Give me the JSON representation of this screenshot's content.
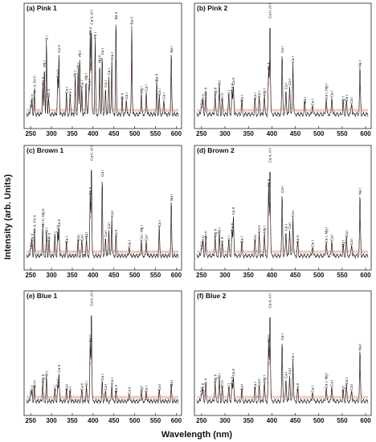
{
  "chart_data": {
    "type": "line",
    "xlabel": "Wavelength (nm)",
    "ylabel": "Intensity (arb. Units)",
    "xlim": [
      240,
      605
    ],
    "xticks": [
      250,
      300,
      350,
      400,
      450,
      500,
      550,
      600
    ],
    "series_colors": {
      "spectrum": "#111111",
      "overlay": "#e08a80"
    },
    "panels": [
      {
        "id": "a",
        "title": "(a) Pink 1",
        "peaks": [
          {
            "x": 250,
            "h": 0.08,
            "label": "Si I"
          },
          {
            "x": 253,
            "h": 0.14,
            "label": "Fe II"
          },
          {
            "x": 259,
            "h": 0.22,
            "label": "Mn II, Fe II"
          },
          {
            "x": 279,
            "h": 0.3,
            "label": "Mg II"
          },
          {
            "x": 283,
            "h": 0.48,
            "label": "Pb I"
          },
          {
            "x": 288,
            "h": 0.74,
            "label": "Si I"
          },
          {
            "x": 293,
            "h": 0.18,
            "label": "Mn II"
          },
          {
            "x": 315,
            "h": 0.38,
            "label": "Ca II"
          },
          {
            "x": 318,
            "h": 0.62,
            "label": "Ca II"
          },
          {
            "x": 336,
            "h": 0.22,
            "label": "Ca I"
          },
          {
            "x": 345,
            "h": 0.2,
            "label": "Fe I"
          },
          {
            "x": 357,
            "h": 0.38,
            "label": "Pb I"
          },
          {
            "x": 364,
            "h": 0.46,
            "label": "Pb I"
          },
          {
            "x": 368,
            "h": 0.58,
            "label": "Pb I"
          },
          {
            "x": 373,
            "h": 0.28,
            "label": "Ca I"
          },
          {
            "x": 383,
            "h": 0.35,
            "label": "Mg I"
          },
          {
            "x": 390,
            "h": 0.3,
            "label": "Ca I"
          },
          {
            "x": 393,
            "h": 0.8,
            "label": "Ca II"
          },
          {
            "x": 396,
            "h": 0.9,
            "label": "Ca II, Al I"
          },
          {
            "x": 405,
            "h": 0.76,
            "label": "Pb I"
          },
          {
            "x": 416,
            "h": 0.52,
            "label": "Mg II"
          },
          {
            "x": 422,
            "h": 0.6,
            "label": "Ca I"
          },
          {
            "x": 430,
            "h": 0.28,
            "label": "Ca I"
          },
          {
            "x": 438,
            "h": 0.4,
            "label": "Ca I"
          },
          {
            "x": 445,
            "h": 0.56,
            "label": "Ca I"
          },
          {
            "x": 455,
            "h": 0.95,
            "label": "Ba II"
          },
          {
            "x": 470,
            "h": 0.16,
            "label": "Si II"
          },
          {
            "x": 480,
            "h": 0.16,
            "label": "Ca I"
          },
          {
            "x": 493,
            "h": 0.9,
            "label": "Ba II"
          },
          {
            "x": 516,
            "h": 0.22,
            "label": "Mg I"
          },
          {
            "x": 528,
            "h": 0.24,
            "label": "Ca I"
          },
          {
            "x": 553,
            "h": 0.34,
            "label": "Ba II"
          },
          {
            "x": 559,
            "h": 0.2,
            "label": "Ca I"
          },
          {
            "x": 570,
            "h": 0.16,
            "label": "Ca I"
          },
          {
            "x": 588,
            "h": 0.62,
            "label": "Na I"
          }
        ]
      },
      {
        "id": "b",
        "title": "(b) Pink 2",
        "peaks": [
          {
            "x": 250,
            "h": 0.1,
            "label": "Si I"
          },
          {
            "x": 253,
            "h": 0.14,
            "label": "Fe II"
          },
          {
            "x": 259,
            "h": 0.2,
            "label": "Mn II"
          },
          {
            "x": 279,
            "h": 0.2,
            "label": "Mg II"
          },
          {
            "x": 288,
            "h": 0.3,
            "label": "Si I"
          },
          {
            "x": 294,
            "h": 0.14,
            "label": "Mn II"
          },
          {
            "x": 308,
            "h": 0.2,
            "label": "Al I"
          },
          {
            "x": 315,
            "h": 0.24,
            "label": "Ca II"
          },
          {
            "x": 318,
            "h": 0.3,
            "label": "Ca II"
          },
          {
            "x": 336,
            "h": 0.14,
            "label": "Ca I"
          },
          {
            "x": 364,
            "h": 0.16,
            "label": "Ca I"
          },
          {
            "x": 373,
            "h": 0.18,
            "label": "Ca I"
          },
          {
            "x": 384,
            "h": 0.2,
            "label": "Mg I"
          },
          {
            "x": 393,
            "h": 0.45,
            "label": "Ca II"
          },
          {
            "x": 396,
            "h": 0.96,
            "label": "Ca II, Al I"
          },
          {
            "x": 422,
            "h": 0.62,
            "label": "Ca I"
          },
          {
            "x": 430,
            "h": 0.26,
            "label": "Ca I"
          },
          {
            "x": 438,
            "h": 0.3,
            "label": "Ca I"
          },
          {
            "x": 445,
            "h": 0.52,
            "label": "Ca I"
          },
          {
            "x": 470,
            "h": 0.12,
            "label": "Ca I"
          },
          {
            "x": 487,
            "h": 0.1,
            "label": "Ca I"
          },
          {
            "x": 516,
            "h": 0.16,
            "label": "Ca I, Mg I"
          },
          {
            "x": 528,
            "h": 0.18,
            "label": "Ca I"
          },
          {
            "x": 552,
            "h": 0.12,
            "label": "Mg I"
          },
          {
            "x": 559,
            "h": 0.14,
            "label": "Ca I"
          },
          {
            "x": 570,
            "h": 0.12,
            "label": "Ca I"
          },
          {
            "x": 588,
            "h": 0.48,
            "label": "Na I"
          }
        ]
      },
      {
        "id": "c",
        "title": "(c) Brown 1",
        "peaks": [
          {
            "x": 250,
            "h": 0.1,
            "label": "Si I"
          },
          {
            "x": 253,
            "h": 0.16,
            "label": "Fe II"
          },
          {
            "x": 259,
            "h": 0.24,
            "label": "Mn II, Fe II"
          },
          {
            "x": 279,
            "h": 0.3,
            "label": "Mn II, Mg II"
          },
          {
            "x": 288,
            "h": 0.24,
            "label": "Si I"
          },
          {
            "x": 294,
            "h": 0.16,
            "label": "Mn II"
          },
          {
            "x": 308,
            "h": 0.2,
            "label": "Al I"
          },
          {
            "x": 315,
            "h": 0.24,
            "label": "Ca II"
          },
          {
            "x": 318,
            "h": 0.3,
            "label": "Ca II"
          },
          {
            "x": 336,
            "h": 0.14,
            "label": "Ca I"
          },
          {
            "x": 364,
            "h": 0.16,
            "label": "Ca I"
          },
          {
            "x": 373,
            "h": 0.16,
            "label": "Ca I"
          },
          {
            "x": 384,
            "h": 0.18,
            "label": "Mg I"
          },
          {
            "x": 393,
            "h": 0.62,
            "label": "Ca II"
          },
          {
            "x": 396,
            "h": 0.96,
            "label": "Ca II, Al I"
          },
          {
            "x": 422,
            "h": 0.8,
            "label": "Ca I"
          },
          {
            "x": 430,
            "h": 0.2,
            "label": "Ca I"
          },
          {
            "x": 438,
            "h": 0.28,
            "label": "Ca I"
          },
          {
            "x": 445,
            "h": 0.4,
            "label": "Ca I"
          },
          {
            "x": 455,
            "h": 0.2,
            "label": "Ba II"
          },
          {
            "x": 487,
            "h": 0.1,
            "label": "Ca I"
          },
          {
            "x": 516,
            "h": 0.16,
            "label": "Ca I, Mg I"
          },
          {
            "x": 528,
            "h": 0.16,
            "label": "Ca I"
          },
          {
            "x": 559,
            "h": 0.3,
            "label": "Ca I"
          },
          {
            "x": 588,
            "h": 0.56,
            "label": "Na I"
          }
        ]
      },
      {
        "id": "d",
        "title": "(d) Brown 2",
        "peaks": [
          {
            "x": 250,
            "h": 0.1,
            "label": "Si I"
          },
          {
            "x": 253,
            "h": 0.14,
            "label": "Fe II"
          },
          {
            "x": 259,
            "h": 0.18,
            "label": "Mn II"
          },
          {
            "x": 279,
            "h": 0.2,
            "label": "Mg II"
          },
          {
            "x": 288,
            "h": 0.24,
            "label": "Si I"
          },
          {
            "x": 294,
            "h": 0.12,
            "label": "Mn II"
          },
          {
            "x": 308,
            "h": 0.16,
            "label": "Al I"
          },
          {
            "x": 315,
            "h": 0.26,
            "label": "Ca II"
          },
          {
            "x": 318,
            "h": 0.42,
            "label": "Ca II"
          },
          {
            "x": 336,
            "h": 0.14,
            "label": "Ca I"
          },
          {
            "x": 364,
            "h": 0.16,
            "label": "Ca I"
          },
          {
            "x": 373,
            "h": 0.24,
            "label": "Ca II"
          },
          {
            "x": 384,
            "h": 0.24,
            "label": "Mg I"
          },
          {
            "x": 393,
            "h": 0.7,
            "label": "Ca II"
          },
          {
            "x": 396,
            "h": 0.94,
            "label": "Ca II, Al I"
          },
          {
            "x": 422,
            "h": 0.64,
            "label": "Ca I"
          },
          {
            "x": 430,
            "h": 0.26,
            "label": "Ca I"
          },
          {
            "x": 438,
            "h": 0.28,
            "label": "Ca I"
          },
          {
            "x": 445,
            "h": 0.4,
            "label": "Ca I"
          },
          {
            "x": 455,
            "h": 0.14,
            "label": "Ba II"
          },
          {
            "x": 487,
            "h": 0.1,
            "label": "Ca I"
          },
          {
            "x": 516,
            "h": 0.14,
            "label": "Ca I, Mg I"
          },
          {
            "x": 528,
            "h": 0.16,
            "label": "Ca I"
          },
          {
            "x": 552,
            "h": 0.1,
            "label": "Mg I"
          },
          {
            "x": 559,
            "h": 0.2,
            "label": "Ca I"
          },
          {
            "x": 570,
            "h": 0.12,
            "label": "Ca I"
          },
          {
            "x": 588,
            "h": 0.62,
            "label": "Na I"
          }
        ]
      },
      {
        "id": "e",
        "title": "(e) Blue 1",
        "peaks": [
          {
            "x": 250,
            "h": 0.08,
            "label": "Si I"
          },
          {
            "x": 253,
            "h": 0.1,
            "label": "Fe II"
          },
          {
            "x": 259,
            "h": 0.14,
            "label": "Mn II"
          },
          {
            "x": 279,
            "h": 0.2,
            "label": "Mg II"
          },
          {
            "x": 288,
            "h": 0.26,
            "label": "Si I"
          },
          {
            "x": 308,
            "h": 0.12,
            "label": "Al I"
          },
          {
            "x": 315,
            "h": 0.16,
            "label": "Ca II"
          },
          {
            "x": 318,
            "h": 0.3,
            "label": "Ca II"
          },
          {
            "x": 336,
            "h": 0.12,
            "label": "Ca I"
          },
          {
            "x": 345,
            "h": 0.1,
            "label": "Fe I"
          },
          {
            "x": 373,
            "h": 0.12,
            "label": "Ca II"
          },
          {
            "x": 384,
            "h": 0.16,
            "label": "Si I"
          },
          {
            "x": 393,
            "h": 0.6,
            "label": "Ca II"
          },
          {
            "x": 396,
            "h": 0.96,
            "label": "Ca II, Al I"
          },
          {
            "x": 422,
            "h": 0.22,
            "label": "Ca I"
          },
          {
            "x": 430,
            "h": 0.12,
            "label": "Ca I"
          },
          {
            "x": 445,
            "h": 0.18,
            "label": "Ca I"
          },
          {
            "x": 455,
            "h": 0.1,
            "label": "Ba II"
          },
          {
            "x": 487,
            "h": 0.08,
            "label": "Ca II"
          },
          {
            "x": 516,
            "h": 0.1,
            "label": "Mg I"
          },
          {
            "x": 528,
            "h": 0.1,
            "label": "Ca I"
          },
          {
            "x": 559,
            "h": 0.12,
            "label": "Ca I"
          },
          {
            "x": 588,
            "h": 0.16,
            "label": "Na I"
          }
        ]
      },
      {
        "id": "f",
        "title": "(f) Blue 2",
        "peaks": [
          {
            "x": 250,
            "h": 0.1,
            "label": "Si I"
          },
          {
            "x": 253,
            "h": 0.12,
            "label": "Fe II"
          },
          {
            "x": 259,
            "h": 0.16,
            "label": "Mn II"
          },
          {
            "x": 279,
            "h": 0.2,
            "label": "Mg II"
          },
          {
            "x": 288,
            "h": 0.24,
            "label": "Si I"
          },
          {
            "x": 294,
            "h": 0.14,
            "label": "Mn II"
          },
          {
            "x": 308,
            "h": 0.14,
            "label": "Al I"
          },
          {
            "x": 315,
            "h": 0.18,
            "label": "Ca II"
          },
          {
            "x": 318,
            "h": 0.26,
            "label": "Ca II"
          },
          {
            "x": 336,
            "h": 0.12,
            "label": "Ca I"
          },
          {
            "x": 364,
            "h": 0.14,
            "label": "Ca I"
          },
          {
            "x": 373,
            "h": 0.16,
            "label": "Ca II"
          },
          {
            "x": 384,
            "h": 0.2,
            "label": "Mg I"
          },
          {
            "x": 393,
            "h": 0.6,
            "label": "Ca II"
          },
          {
            "x": 396,
            "h": 0.94,
            "label": "Ca II, Al I"
          },
          {
            "x": 422,
            "h": 0.62,
            "label": "Ca I"
          },
          {
            "x": 430,
            "h": 0.24,
            "label": "Ca I"
          },
          {
            "x": 438,
            "h": 0.28,
            "label": "Ca I"
          },
          {
            "x": 445,
            "h": 0.42,
            "label": "Ca I"
          },
          {
            "x": 455,
            "h": 0.12,
            "label": "Ba II"
          },
          {
            "x": 487,
            "h": 0.1,
            "label": "Ca I"
          },
          {
            "x": 516,
            "h": 0.14,
            "label": "Ca I, Mg I"
          },
          {
            "x": 528,
            "h": 0.16,
            "label": "Ca I"
          },
          {
            "x": 552,
            "h": 0.1,
            "label": "Mg I"
          },
          {
            "x": 559,
            "h": 0.18,
            "label": "Ca I"
          },
          {
            "x": 570,
            "h": 0.12,
            "label": "Ca I"
          },
          {
            "x": 588,
            "h": 0.52,
            "label": "Na I"
          }
        ]
      }
    ]
  }
}
